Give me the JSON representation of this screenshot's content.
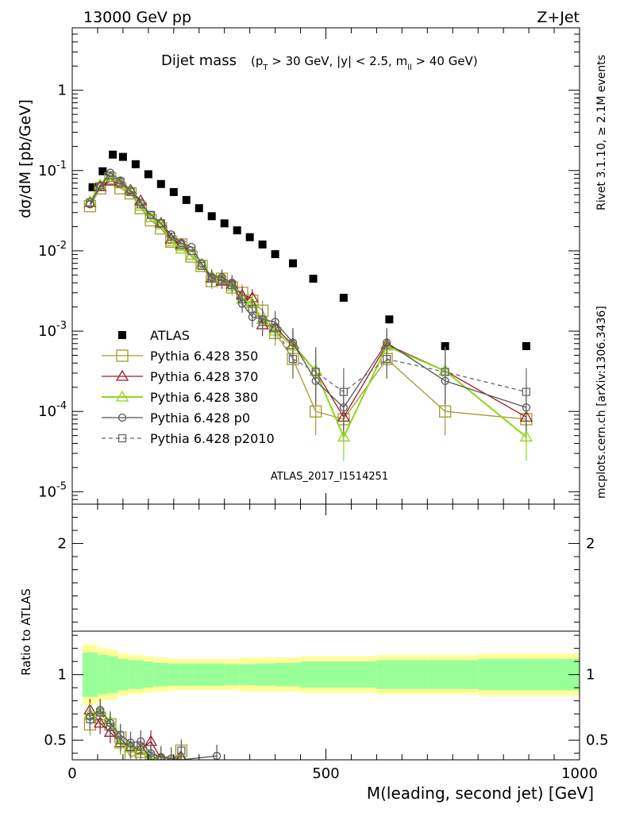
{
  "header": {
    "left": "13000 GeV pp",
    "right": "Z+Jet",
    "side_top": "Rivet 3.1.10, ≥ 2.1M events",
    "side_bottom": "mcplots.cern.ch [arXiv:1306.3436]",
    "analysis_id": "ATLAS_2017_I1514251"
  },
  "colors": {
    "data": "#000000",
    "350": "#a39a32",
    "370": "#9b1a2c",
    "380": "#8fd61a",
    "p0": "#555555",
    "p2010": "#666666",
    "band_inner": "#99ff99",
    "band_outer": "#ffff99"
  },
  "chart_data": [
    {
      "type": "scatter",
      "title": "Dijet mass",
      "title_sub": "(p_T > 30 GeV, |y| < 2.5, m_ll > 40 GeV)",
      "ylabel": "dσ/dM [pb/GeV]",
      "yscale": "log",
      "xlim": [
        0,
        1000
      ],
      "ylim": [
        7e-06,
        6
      ],
      "ytick_labels": [
        "1",
        "10^-1",
        "10^-2",
        "10^-3",
        "10^-4",
        "10^-5"
      ],
      "legend_position": "middle-left",
      "series": [
        {
          "name": "ATLAS",
          "key": "data",
          "x": [
            40,
            60,
            80,
            100,
            125,
            150,
            175,
            200,
            225,
            250,
            275,
            300,
            325,
            350,
            375,
            400,
            435,
            475,
            535,
            625,
            735,
            895
          ],
          "y": [
            0.062,
            0.098,
            0.158,
            0.148,
            0.12,
            0.09,
            0.068,
            0.054,
            0.043,
            0.034,
            0.027,
            0.022,
            0.018,
            0.0148,
            0.012,
            0.0091,
            0.007,
            0.0045,
            0.0026,
            0.0014,
            0.00065,
            0.00065
          ]
        },
        {
          "name": "Pythia 6.428 350",
          "key": "350",
          "x": [
            35,
            55,
            75,
            95,
            115,
            135,
            155,
            175,
            195,
            215,
            235,
            255,
            275,
            295,
            315,
            335,
            355,
            375,
            400,
            435,
            480,
            535,
            620,
            735,
            895
          ],
          "y": [
            0.036,
            0.06,
            0.08,
            0.06,
            0.052,
            0.034,
            0.024,
            0.019,
            0.013,
            0.012,
            0.0085,
            0.0065,
            0.0042,
            0.0045,
            0.0035,
            0.003,
            0.0024,
            0.0018,
            0.00095,
            0.00045,
            0.0001,
            8e-05,
            0.00045,
            0.0001,
            8e-05
          ]
        },
        {
          "name": "Pythia 6.428 370",
          "key": "370",
          "x": [
            35,
            55,
            75,
            95,
            115,
            135,
            155,
            175,
            195,
            215,
            235,
            255,
            275,
            295,
            315,
            335,
            355,
            375,
            400,
            435,
            480,
            535,
            620,
            735,
            895
          ],
          "y": [
            0.04,
            0.063,
            0.074,
            0.07,
            0.057,
            0.042,
            0.026,
            0.022,
            0.014,
            0.012,
            0.0088,
            0.0068,
            0.0046,
            0.0042,
            0.0038,
            0.0028,
            0.0026,
            0.0012,
            0.0011,
            0.00068,
            0.00032,
            8.5e-05,
            0.00068,
            0.00032,
            8.5e-05
          ]
        },
        {
          "name": "Pythia 6.428 380",
          "key": "380",
          "x": [
            35,
            55,
            75,
            95,
            115,
            135,
            155,
            175,
            195,
            215,
            235,
            255,
            275,
            295,
            315,
            335,
            355,
            375,
            400,
            435,
            480,
            535,
            620,
            735,
            895
          ],
          "y": [
            0.041,
            0.066,
            0.083,
            0.068,
            0.055,
            0.036,
            0.026,
            0.021,
            0.013,
            0.0105,
            0.0088,
            0.0068,
            0.0048,
            0.0045,
            0.0036,
            0.0025,
            0.0022,
            0.0014,
            0.001,
            0.00065,
            0.00032,
            4.8e-05,
            0.00065,
            0.00032,
            4.8e-05
          ]
        },
        {
          "name": "Pythia 6.428 p0",
          "key": "p0",
          "x": [
            35,
            55,
            75,
            95,
            115,
            135,
            155,
            175,
            195,
            215,
            235,
            255,
            275,
            295,
            315,
            335,
            355,
            375,
            400,
            435,
            480,
            535,
            620,
            735,
            895
          ],
          "y": [
            0.038,
            0.065,
            0.094,
            0.075,
            0.057,
            0.04,
            0.028,
            0.022,
            0.016,
            0.0125,
            0.0112,
            0.007,
            0.0047,
            0.0047,
            0.004,
            0.0022,
            0.0015,
            0.0014,
            0.0013,
            0.00072,
            0.00024,
            0.000112,
            0.00072,
            0.00024,
            0.000112
          ]
        },
        {
          "name": "Pythia 6.428 p2010",
          "key": "p2010",
          "x": [
            35,
            55,
            75,
            95,
            115,
            135,
            155,
            175,
            195,
            215,
            235,
            255,
            275,
            295,
            315,
            335,
            355,
            375,
            400,
            435,
            480,
            535,
            620,
            735,
            895
          ],
          "y": [
            0.04,
            0.063,
            0.087,
            0.072,
            0.054,
            0.038,
            0.028,
            0.022,
            0.015,
            0.012,
            0.01,
            0.0065,
            0.0045,
            0.0044,
            0.0038,
            0.0025,
            0.0019,
            0.0013,
            0.0011,
            0.00045,
            0.00031,
            0.000175,
            0.00045,
            0.00031,
            0.000175
          ]
        }
      ]
    },
    {
      "type": "scatter",
      "xlabel": "M(leading, second jet) [GeV]",
      "ylabel": "Ratio to ATLAS",
      "xlim": [
        0,
        1000
      ],
      "ylim": [
        0.35,
        2.3
      ],
      "x_tick_labels": [
        "0",
        "500",
        "1000"
      ],
      "y_tick_labels": [
        "0.5",
        "1",
        "2"
      ],
      "band": {
        "edges": [
          20,
          50,
          70,
          90,
          110,
          140,
          160,
          190,
          210,
          240,
          270,
          300,
          330,
          360,
          400,
          450,
          500,
          550,
          600,
          700,
          800,
          900,
          1000
        ],
        "inner": [
          0.17,
          0.15,
          0.14,
          0.12,
          0.11,
          0.1,
          0.09,
          0.085,
          0.085,
          0.085,
          0.085,
          0.08,
          0.08,
          0.085,
          0.09,
          0.1,
          0.1,
          0.1,
          0.11,
          0.11,
          0.12,
          0.12
        ],
        "outer": [
          0.23,
          0.2,
          0.19,
          0.16,
          0.15,
          0.14,
          0.13,
          0.12,
          0.12,
          0.12,
          0.12,
          0.12,
          0.13,
          0.13,
          0.13,
          0.14,
          0.14,
          0.14,
          0.15,
          0.15,
          0.16,
          0.16
        ]
      },
      "series": [
        {
          "key": "350",
          "x": [
            35,
            55,
            75,
            95,
            115,
            135,
            155,
            175,
            195,
            215
          ],
          "y": [
            0.62,
            0.67,
            0.62,
            0.52,
            0.37,
            0.41,
            0.35,
            0.3,
            0.33,
            0.42
          ]
        },
        {
          "key": "370",
          "x": [
            35,
            55,
            75,
            95,
            115,
            135,
            155,
            175,
            195,
            215
          ],
          "y": [
            0.73,
            0.63,
            0.56,
            0.48,
            0.45,
            0.43,
            0.49,
            0.36,
            0.3,
            0.37
          ]
        },
        {
          "key": "380",
          "x": [
            35,
            55,
            75,
            95,
            115,
            135,
            155,
            175,
            195,
            215
          ],
          "y": [
            0.7,
            0.72,
            0.64,
            0.47,
            0.44,
            0.42,
            0.36,
            0.35,
            0.33,
            0.36
          ]
        },
        {
          "key": "p0",
          "x": [
            35,
            55,
            75,
            95,
            115,
            135,
            155,
            175,
            195,
            215,
            285
          ],
          "y": [
            0.68,
            0.73,
            0.63,
            0.54,
            0.48,
            0.49,
            0.4,
            0.37,
            0.36,
            0.35,
            0.38
          ]
        },
        {
          "key": "p2010",
          "x": [
            35,
            55,
            75,
            95,
            115,
            135,
            155,
            175,
            195,
            215
          ],
          "y": [
            0.66,
            0.71,
            0.6,
            0.5,
            0.45,
            0.45,
            0.38,
            0.35,
            0.33,
            0.42
          ]
        }
      ]
    }
  ]
}
